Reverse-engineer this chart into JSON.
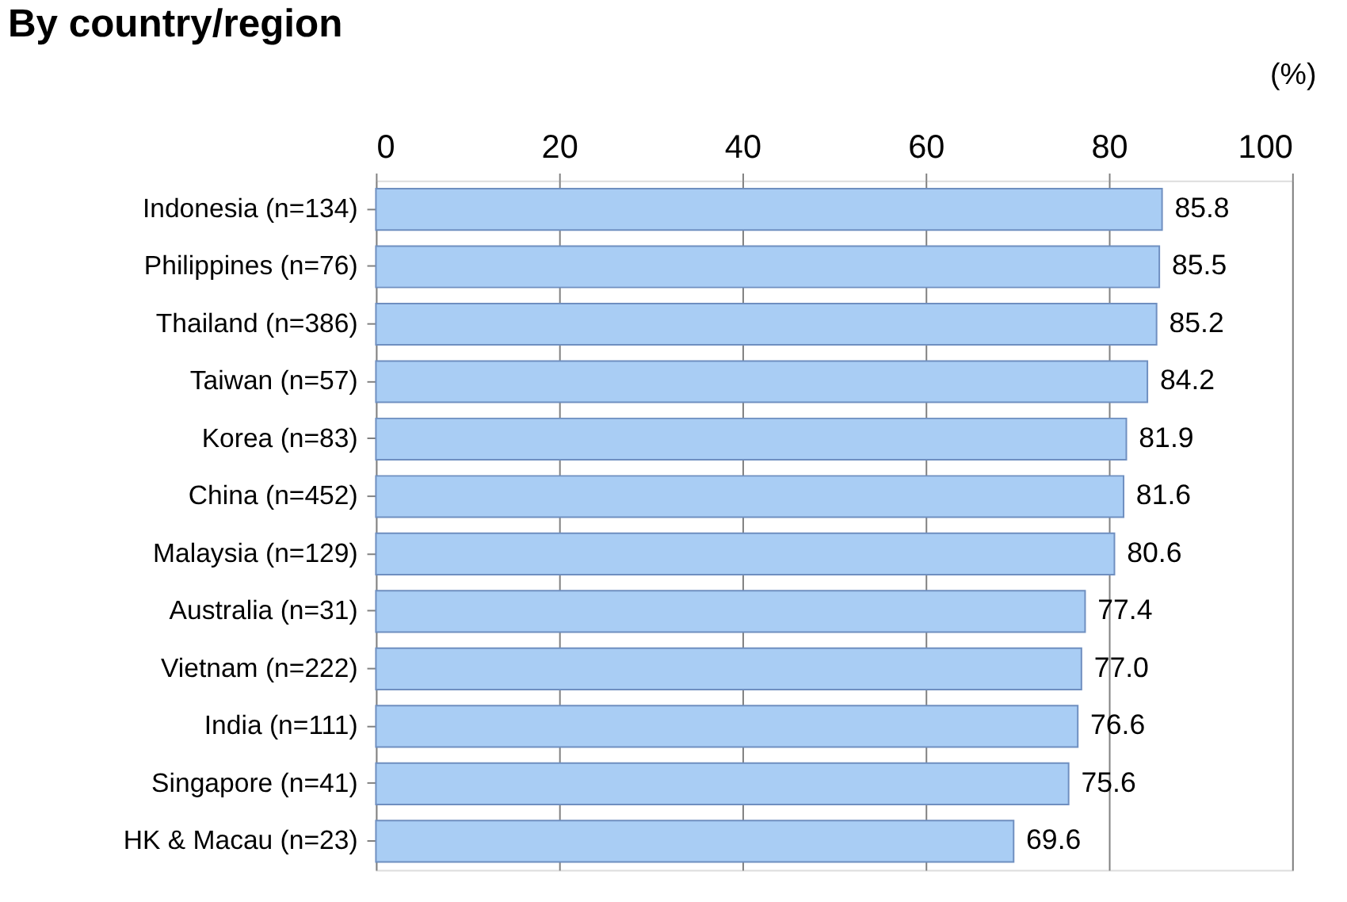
{
  "chart_data": {
    "type": "bar",
    "orientation": "horizontal",
    "title": "By country/region",
    "xlabel": "(%)",
    "categories": [
      "Indonesia (n=134)",
      "Philippines (n=76)",
      "Thailand (n=386)",
      "Taiwan (n=57)",
      "Korea (n=83)",
      "China (n=452)",
      "Malaysia (n=129)",
      "Australia (n=31)",
      "Vietnam (n=222)",
      "India (n=111)",
      "Singapore (n=41)",
      "HK & Macau (n=23)"
    ],
    "values": [
      85.8,
      85.5,
      85.2,
      84.2,
      81.9,
      81.6,
      80.6,
      77.4,
      77.0,
      76.6,
      75.6,
      69.6
    ],
    "color": "#a9cdf4",
    "xlim": [
      0,
      100
    ],
    "xticks": [
      0,
      20,
      40,
      60,
      80,
      100
    ],
    "grid": "x",
    "value_labels": [
      "85.8",
      "85.5",
      "85.2",
      "84.2",
      "81.9",
      "81.6",
      "80.6",
      "77.4",
      "77.0",
      "76.6",
      "75.6",
      "69.6"
    ]
  }
}
